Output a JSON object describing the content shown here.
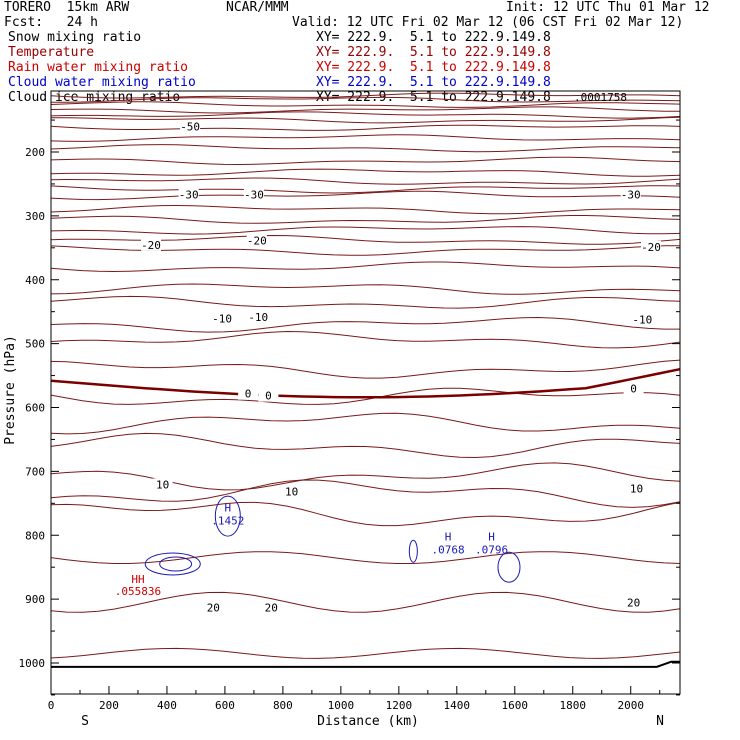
{
  "header": {
    "model": "TORERO  15km ARW",
    "source": "NCAR/MMM",
    "init": "Init: 12 UTC Thu 01 Mar 12",
    "forecast": "Fcst:   24 h",
    "valid": "Valid: 12 UTC Fri 02 Mar 12 (06 CST Fri 02 Mar 12)"
  },
  "fields": [
    {
      "name": "Snow mixing ratio",
      "xy": "XY= 222.9.  5.1 to 222.9.149.8",
      "color": "#000000"
    },
    {
      "name": "Temperature",
      "xy": "XY= 222.9.  5.1 to 222.9.149.8",
      "color": "#990000"
    },
    {
      "name": "Rain water mixing ratio",
      "xy": "XY= 222.9.  5.1 to 222.9.149.8",
      "color": "#cc0000"
    },
    {
      "name": "Cloud water mixing ratio",
      "xy": "XY= 222.9.  5.1 to 222.9.149.8",
      "color": "#0000cc"
    },
    {
      "name": "Cloud ice mixing ratio",
      "xy": "XY= 222.9.  5.1 to 222.9.149.8",
      "color": "#000000"
    }
  ],
  "colors": {
    "temperature": "#7a1a1a",
    "freezing_line": "#7a0000",
    "cloud_water": "#1a1ab4",
    "rain_water": "#cc0000",
    "terrain": "#000000"
  },
  "chart_data": {
    "type": "contour",
    "xlabel": "Distance (km)",
    "ylabel": "Pressure (hPa)",
    "xlim": [
      0,
      2170
    ],
    "ylim": [
      1050,
      100
    ],
    "x_ticks": [
      0,
      200,
      400,
      600,
      800,
      1000,
      1200,
      1400,
      1600,
      1800,
      2000
    ],
    "x_tick_labels": [
      "0",
      "200",
      "400",
      "600",
      "800",
      "1000",
      "1200",
      "1400",
      "1600",
      "1800",
      "2000"
    ],
    "y_ticks": [
      200,
      300,
      400,
      500,
      600,
      700,
      800,
      900,
      1000
    ],
    "y_tick_labels": [
      "200",
      "300",
      "400",
      "500",
      "600",
      "700",
      "800",
      "900",
      "1000"
    ],
    "x_end_labels": {
      "left": "S",
      "right": "N"
    },
    "corner_max_label": ".0001758",
    "temperature_labels": [
      {
        "x": 480,
        "p": 162,
        "text": "-50"
      },
      {
        "x": 475,
        "p": 268,
        "text": "-30"
      },
      {
        "x": 700,
        "p": 268,
        "text": "-30"
      },
      {
        "x": 2000,
        "p": 268,
        "text": "-30"
      },
      {
        "x": 345,
        "p": 347,
        "text": "-20"
      },
      {
        "x": 710,
        "p": 340,
        "text": "-20"
      },
      {
        "x": 2070,
        "p": 350,
        "text": "-20"
      },
      {
        "x": 590,
        "p": 462,
        "text": "-10"
      },
      {
        "x": 715,
        "p": 460,
        "text": "-10"
      },
      {
        "x": 2040,
        "p": 464,
        "text": "-10"
      },
      {
        "x": 680,
        "p": 580,
        "text": "0"
      },
      {
        "x": 750,
        "p": 583,
        "text": "0"
      },
      {
        "x": 2010,
        "p": 572,
        "text": "0"
      },
      {
        "x": 385,
        "p": 722,
        "text": "10"
      },
      {
        "x": 830,
        "p": 733,
        "text": "10"
      },
      {
        "x": 2020,
        "p": 728,
        "text": "10"
      },
      {
        "x": 560,
        "p": 915,
        "text": "20"
      },
      {
        "x": 760,
        "p": 915,
        "text": "20"
      },
      {
        "x": 2010,
        "p": 907,
        "text": "20"
      }
    ],
    "cloud_water_maxima": [
      {
        "x": 610,
        "p": 763,
        "mark": "H",
        "value": ".1452"
      },
      {
        "x": 1370,
        "p": 808,
        "mark": "H",
        "value": ".0768"
      },
      {
        "x": 1520,
        "p": 808,
        "mark": "H",
        "value": ".0796"
      }
    ],
    "rain_water_maxima": [
      {
        "x": 300,
        "p": 875,
        "mark": "HH",
        "value": ".055836"
      }
    ]
  }
}
